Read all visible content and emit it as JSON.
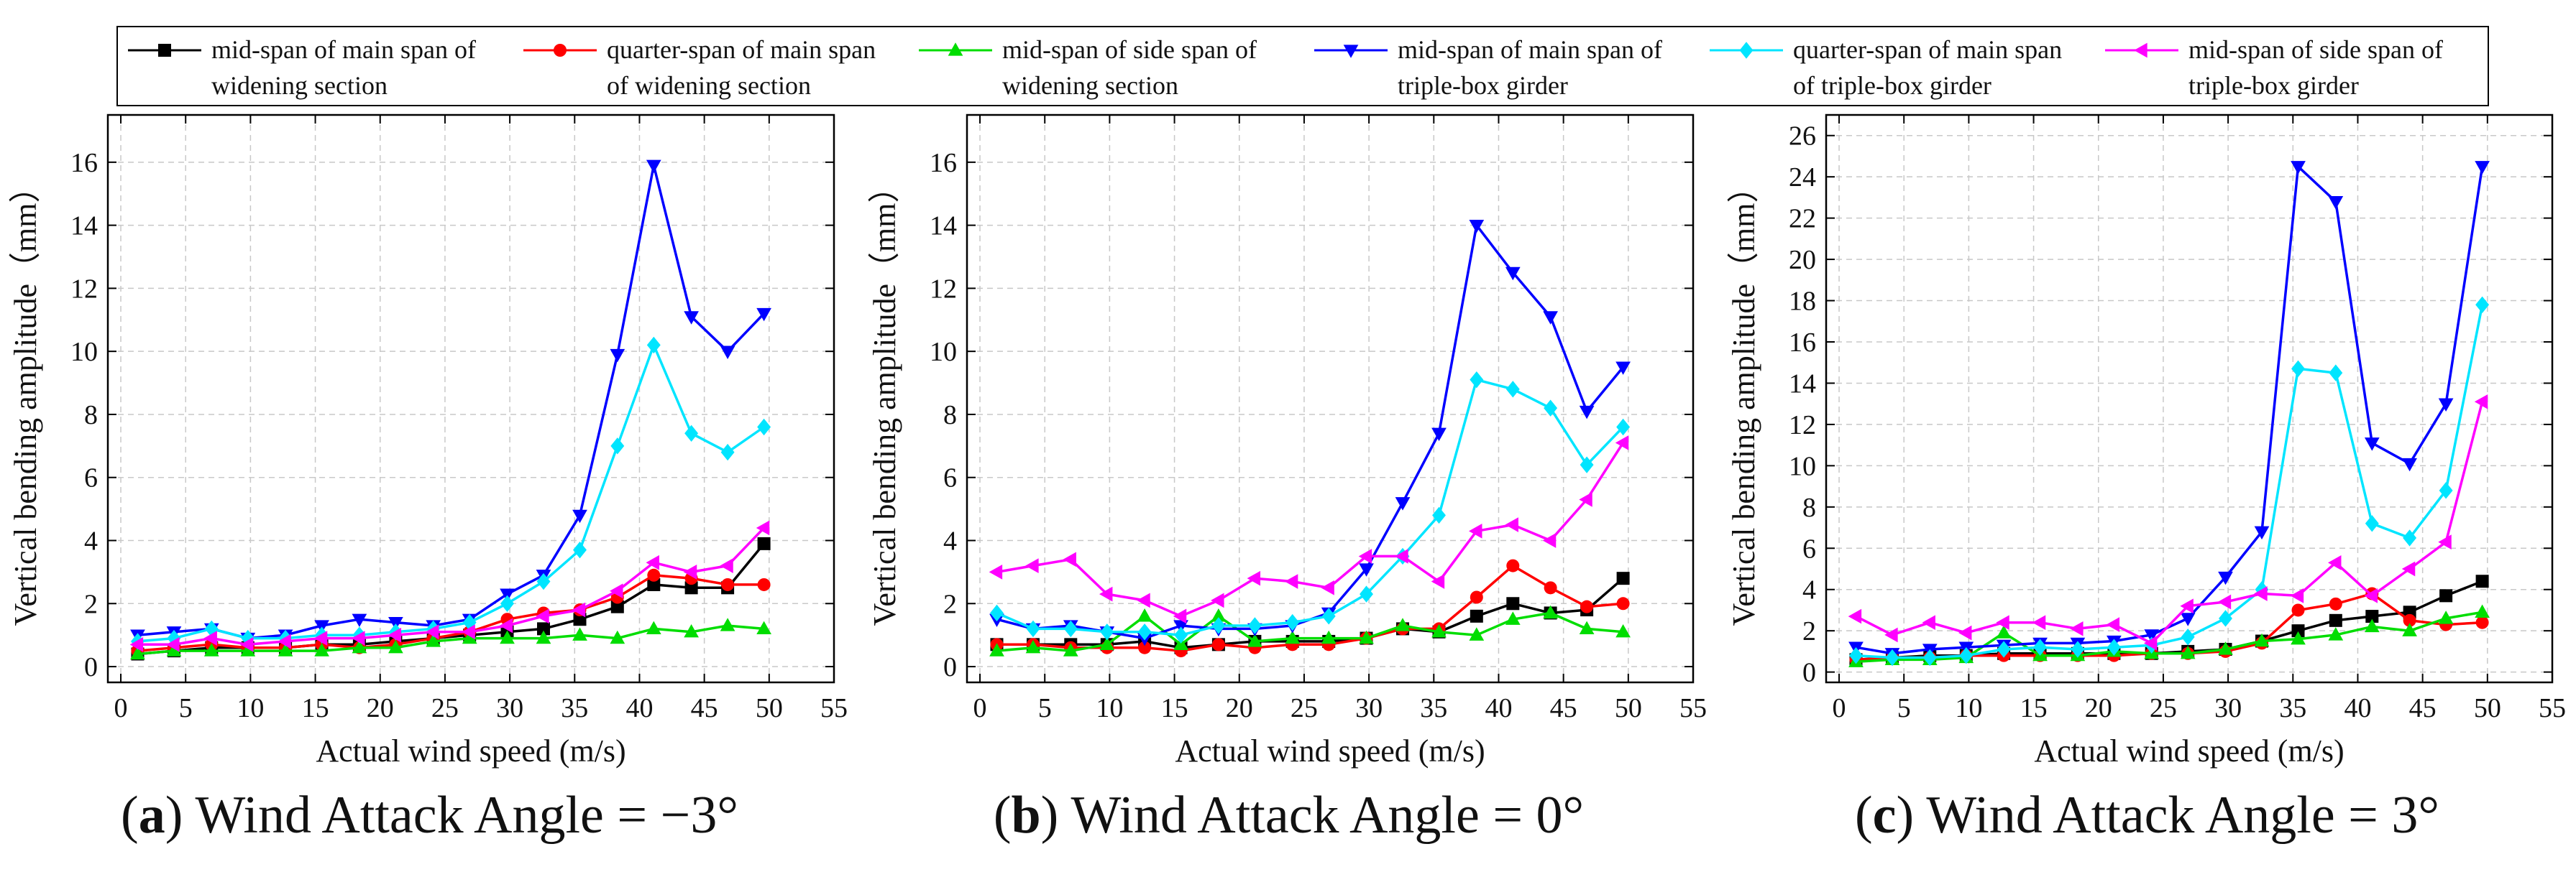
{
  "figure": {
    "series_styles": [
      {
        "color": "#000000",
        "marker": "square"
      },
      {
        "color": "#ff0000",
        "marker": "circle"
      },
      {
        "color": "#00dd00",
        "marker": "triangle-up"
      },
      {
        "color": "#0000ff",
        "marker": "triangle-down"
      },
      {
        "color": "#00e5ff",
        "marker": "diamond"
      },
      {
        "color": "#ff00ff",
        "marker": "triangle-left"
      }
    ]
  },
  "legend": {
    "items": [
      {
        "line1": "mid-span of main span of",
        "line2": "widening section"
      },
      {
        "line1": "quarter-span of main span",
        "line2": "of widening section"
      },
      {
        "line1": "mid-span of side span of",
        "line2": "widening section"
      },
      {
        "line1": "mid-span of main span of",
        "line2": "triple-box girder"
      },
      {
        "line1": "quarter-span of main span",
        "line2": "of triple-box girder"
      },
      {
        "line1": "mid-span of side span of",
        "line2": "triple-box girder"
      }
    ]
  },
  "captions": [
    {
      "letter": "a",
      "text": "Wind Attack Angle = −3°"
    },
    {
      "letter": "b",
      "text": "Wind Attack Angle = 0°"
    },
    {
      "letter": "c",
      "text": "Wind Attack Angle = 3°"
    }
  ],
  "chart_data": [
    {
      "type": "line",
      "title": "(a) Wind Attack Angle = −3°",
      "xlabel": "Actual wind speed (m/s)",
      "ylabel": "Vertical bending amplitude（mm）",
      "xlim": [
        -1,
        55
      ],
      "ylim": [
        -0.5,
        17.5
      ],
      "xticks": [
        0,
        5,
        10,
        15,
        20,
        25,
        30,
        35,
        40,
        45,
        50,
        55
      ],
      "yticks": [
        0,
        2,
        4,
        6,
        8,
        10,
        12,
        14,
        16
      ],
      "grid": true,
      "x": [
        1.3,
        4.1,
        7.0,
        9.8,
        12.7,
        15.5,
        18.4,
        21.2,
        24.1,
        26.9,
        29.8,
        32.6,
        35.4,
        38.3,
        41.1,
        44.0,
        46.8,
        49.6
      ],
      "series": [
        {
          "name": "mid-span of main span of widening section",
          "values": [
            0.4,
            0.5,
            0.6,
            0.6,
            0.6,
            0.7,
            0.7,
            0.8,
            0.9,
            1.0,
            1.1,
            1.2,
            1.5,
            1.9,
            2.6,
            2.5,
            2.5,
            3.9
          ]
        },
        {
          "name": "quarter-span of main span of widening section",
          "values": [
            0.5,
            0.6,
            0.7,
            0.6,
            0.6,
            0.7,
            0.6,
            0.7,
            0.9,
            1.1,
            1.5,
            1.7,
            1.8,
            2.2,
            2.9,
            2.8,
            2.6,
            2.6
          ]
        },
        {
          "name": "mid-span of side span of widening section",
          "values": [
            0.4,
            0.5,
            0.5,
            0.5,
            0.5,
            0.5,
            0.6,
            0.6,
            0.8,
            0.9,
            0.9,
            0.9,
            1.0,
            0.9,
            1.2,
            1.1,
            1.3,
            1.2
          ]
        },
        {
          "name": "mid-span of main span of triple-box girder",
          "values": [
            1.0,
            1.1,
            1.2,
            0.9,
            1.0,
            1.3,
            1.5,
            1.4,
            1.3,
            1.5,
            2.3,
            2.9,
            4.8,
            9.9,
            15.9,
            11.1,
            10.0,
            11.2
          ]
        },
        {
          "name": "quarter-span of main span of triple-box girder",
          "values": [
            0.8,
            0.9,
            1.2,
            0.9,
            0.9,
            1.0,
            1.0,
            1.1,
            1.2,
            1.4,
            2.0,
            2.7,
            3.7,
            7.0,
            10.2,
            7.4,
            6.8,
            7.6
          ]
        },
        {
          "name": "mid-span of side span of triple-box girder",
          "values": [
            0.7,
            0.7,
            0.9,
            0.7,
            0.8,
            0.9,
            0.9,
            1.0,
            1.1,
            1.1,
            1.3,
            1.6,
            1.8,
            2.4,
            3.3,
            3.0,
            3.2,
            4.4
          ]
        }
      ]
    },
    {
      "type": "line",
      "title": "(b) Wind Attack Angle = 0°",
      "xlabel": "Actual wind speed (m/s)",
      "ylabel": "Vertical bending amplitude（mm）",
      "xlim": [
        -1,
        55
      ],
      "ylim": [
        -0.5,
        17.5
      ],
      "xticks": [
        0,
        5,
        10,
        15,
        20,
        25,
        30,
        35,
        40,
        45,
        50,
        55
      ],
      "yticks": [
        0,
        2,
        4,
        6,
        8,
        10,
        12,
        14,
        16
      ],
      "grid": true,
      "x": [
        1.3,
        4.1,
        7.0,
        9.8,
        12.7,
        15.5,
        18.4,
        21.2,
        24.1,
        26.9,
        29.8,
        32.6,
        35.4,
        38.3,
        41.1,
        44.0,
        46.8,
        49.6
      ],
      "series": [
        {
          "name": "mid-span of main span of widening section",
          "values": [
            0.7,
            0.7,
            0.7,
            0.7,
            0.8,
            0.6,
            0.7,
            0.8,
            0.8,
            0.8,
            0.9,
            1.2,
            1.1,
            1.6,
            2.0,
            1.7,
            1.8,
            2.8
          ]
        },
        {
          "name": "quarter-span of main span of widening section",
          "values": [
            0.7,
            0.7,
            0.6,
            0.6,
            0.6,
            0.5,
            0.7,
            0.6,
            0.7,
            0.7,
            0.9,
            1.2,
            1.2,
            2.2,
            3.2,
            2.5,
            1.9,
            2.0
          ]
        },
        {
          "name": "mid-span of side span of widening section",
          "values": [
            0.5,
            0.6,
            0.5,
            0.7,
            1.6,
            0.7,
            1.6,
            0.8,
            0.9,
            0.9,
            0.9,
            1.3,
            1.1,
            1.0,
            1.5,
            1.7,
            1.2,
            1.1
          ]
        },
        {
          "name": "mid-span of main span of triple-box girder",
          "values": [
            1.5,
            1.2,
            1.3,
            1.1,
            0.9,
            1.3,
            1.2,
            1.2,
            1.3,
            1.7,
            3.1,
            5.2,
            7.4,
            14.0,
            12.5,
            11.1,
            8.1,
            9.5
          ]
        },
        {
          "name": "quarter-span of main span of triple-box girder",
          "values": [
            1.7,
            1.2,
            1.2,
            1.1,
            1.1,
            1.0,
            1.3,
            1.3,
            1.4,
            1.6,
            2.3,
            3.5,
            4.8,
            9.1,
            8.8,
            8.2,
            6.4,
            7.6
          ]
        },
        {
          "name": "mid-span of side span of triple-box girder",
          "values": [
            3.0,
            3.2,
            3.4,
            2.3,
            2.1,
            1.6,
            2.1,
            2.8,
            2.7,
            2.5,
            3.5,
            3.5,
            2.7,
            4.3,
            4.5,
            4.0,
            5.3,
            7.1
          ]
        }
      ]
    },
    {
      "type": "line",
      "title": "(c) Wind Attack Angle = 3°",
      "xlabel": "Actual wind speed (m/s)",
      "ylabel": "Vertical bending amplitude（mm）",
      "xlim": [
        -1,
        55
      ],
      "ylim": [
        -0.5,
        27
      ],
      "xticks": [
        0,
        5,
        10,
        15,
        20,
        25,
        30,
        35,
        40,
        45,
        50,
        55
      ],
      "yticks": [
        0,
        2,
        4,
        6,
        8,
        10,
        12,
        14,
        16,
        18,
        20,
        22,
        24,
        26
      ],
      "grid": true,
      "x": [
        1.3,
        4.1,
        7.0,
        9.8,
        12.7,
        15.5,
        18.4,
        21.2,
        24.1,
        26.9,
        29.8,
        32.6,
        35.4,
        38.3,
        41.1,
        44.0,
        46.8,
        49.6
      ],
      "series": [
        {
          "name": "mid-span of main span of widening section",
          "values": [
            0.6,
            0.7,
            0.8,
            0.8,
            0.9,
            0.9,
            0.9,
            0.9,
            0.9,
            1.0,
            1.1,
            1.5,
            2.0,
            2.5,
            2.7,
            2.9,
            3.7,
            4.4
          ]
        },
        {
          "name": "quarter-span of main span of widening section",
          "values": [
            0.6,
            0.7,
            0.7,
            0.8,
            0.8,
            0.8,
            0.8,
            0.8,
            0.9,
            0.9,
            1.0,
            1.4,
            3.0,
            3.3,
            3.8,
            2.5,
            2.3,
            2.4
          ]
        },
        {
          "name": "mid-span of side span of widening section",
          "values": [
            0.5,
            0.6,
            0.6,
            0.7,
            1.9,
            0.8,
            0.8,
            1.0,
            0.9,
            0.9,
            1.1,
            1.5,
            1.6,
            1.8,
            2.2,
            2.0,
            2.6,
            2.9
          ]
        },
        {
          "name": "mid-span of main span of triple-box girder",
          "values": [
            1.2,
            0.9,
            1.1,
            1.2,
            1.3,
            1.4,
            1.4,
            1.5,
            1.8,
            2.6,
            4.6,
            6.8,
            24.5,
            22.8,
            11.1,
            10.1,
            13.0,
            24.5
          ]
        },
        {
          "name": "quarter-span of main span of triple-box girder",
          "values": [
            0.8,
            0.7,
            0.7,
            0.8,
            1.1,
            1.2,
            1.1,
            1.2,
            1.3,
            1.7,
            2.6,
            4.0,
            14.7,
            14.5,
            7.2,
            6.5,
            8.8,
            17.8
          ]
        },
        {
          "name": "mid-span of side span of triple-box girder",
          "values": [
            2.7,
            1.8,
            2.4,
            1.9,
            2.4,
            2.4,
            2.1,
            2.3,
            1.4,
            3.2,
            3.4,
            3.8,
            3.7,
            5.3,
            3.7,
            5.0,
            6.3,
            13.1
          ]
        }
      ]
    }
  ]
}
